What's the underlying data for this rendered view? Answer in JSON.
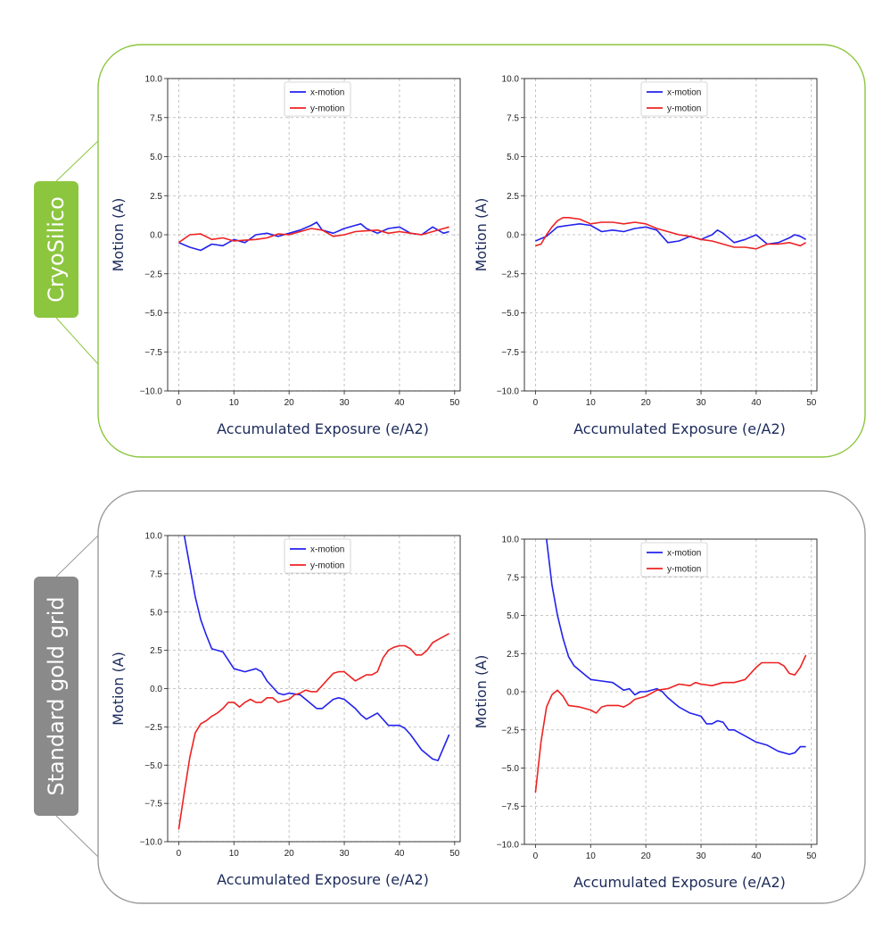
{
  "groups": [
    {
      "label": "CryoSilico",
      "color": "#8cc63f",
      "frame_color": "#8cc63f"
    },
    {
      "label": "Standard gold grid",
      "color": "#8a8a8a",
      "frame_color": "#9a9a9a"
    }
  ],
  "colors": {
    "x_motion": "#2222ee",
    "y_motion": "#ee2222"
  },
  "chart_data": [
    {
      "type": "line",
      "xlabel": "Accumulated Exposure (e/A2)",
      "ylabel": "Motion (A)",
      "xlim": [
        -2,
        51
      ],
      "ylim": [
        -10,
        10
      ],
      "xticks": [
        "0",
        "10",
        "20",
        "30",
        "40",
        "50"
      ],
      "yticks": [
        "10.0",
        "7.5",
        "5.0",
        "2.5",
        "0.0",
        "−2.5",
        "−5.0",
        "−7.5",
        "−10.0"
      ],
      "legend": "top-center",
      "grid": true,
      "series": [
        {
          "name": "x-motion",
          "x": [
            0,
            2,
            4,
            6,
            8,
            10,
            12,
            14,
            16,
            18,
            20,
            22,
            24,
            25,
            26,
            28,
            30,
            32,
            33,
            34,
            36,
            38,
            40,
            42,
            44,
            46,
            48,
            49
          ],
          "y": [
            -0.5,
            -0.8,
            -1.0,
            -0.6,
            -0.7,
            -0.3,
            -0.5,
            0.0,
            0.1,
            -0.1,
            0.1,
            0.3,
            0.6,
            0.8,
            0.3,
            0.1,
            0.4,
            0.6,
            0.7,
            0.4,
            0.1,
            0.4,
            0.5,
            0.1,
            0.0,
            0.5,
            0.1,
            0.2
          ]
        },
        {
          "name": "y-motion",
          "x": [
            0,
            2,
            4,
            6,
            8,
            10,
            12,
            14,
            16,
            18,
            20,
            22,
            24,
            26,
            28,
            30,
            32,
            34,
            36,
            38,
            40,
            42,
            44,
            46,
            48,
            49
          ],
          "y": [
            -0.5,
            0.0,
            0.05,
            -0.3,
            -0.2,
            -0.4,
            -0.35,
            -0.3,
            -0.2,
            0.05,
            0.0,
            0.2,
            0.4,
            0.3,
            -0.1,
            0.0,
            0.2,
            0.25,
            0.3,
            0.1,
            0.2,
            0.1,
            0.0,
            0.2,
            0.4,
            0.5
          ]
        }
      ]
    },
    {
      "type": "line",
      "xlabel": "Accumulated Exposure (e/A2)",
      "ylabel": "Motion (A)",
      "xlim": [
        -2,
        51
      ],
      "ylim": [
        -10,
        10
      ],
      "xticks": [
        "0",
        "10",
        "20",
        "30",
        "40",
        "50"
      ],
      "yticks": [
        "10.0",
        "7.5",
        "5.0",
        "2.5",
        "0.0",
        "−2.5",
        "−5.0",
        "−7.5",
        "−10.0"
      ],
      "legend": "top-center",
      "grid": true,
      "series": [
        {
          "name": "x-motion",
          "x": [
            0,
            2,
            4,
            6,
            8,
            10,
            12,
            14,
            16,
            18,
            20,
            22,
            24,
            26,
            28,
            30,
            32,
            33,
            34,
            36,
            38,
            40,
            42,
            44,
            46,
            47,
            48,
            49
          ],
          "y": [
            -0.4,
            -0.1,
            0.5,
            0.6,
            0.7,
            0.6,
            0.2,
            0.3,
            0.2,
            0.4,
            0.5,
            0.3,
            -0.5,
            -0.4,
            -0.1,
            -0.3,
            0.0,
            0.3,
            0.1,
            -0.5,
            -0.3,
            0.0,
            -0.6,
            -0.5,
            -0.2,
            0.0,
            -0.1,
            -0.3
          ]
        },
        {
          "name": "y-motion",
          "x": [
            0,
            1,
            2,
            3,
            4,
            5,
            6,
            8,
            10,
            12,
            14,
            16,
            18,
            20,
            22,
            24,
            26,
            28,
            30,
            32,
            34,
            36,
            38,
            40,
            42,
            44,
            46,
            48,
            49
          ],
          "y": [
            -0.7,
            -0.6,
            0.0,
            0.5,
            0.9,
            1.1,
            1.1,
            1.0,
            0.7,
            0.8,
            0.8,
            0.7,
            0.8,
            0.7,
            0.4,
            0.2,
            0.0,
            -0.1,
            -0.3,
            -0.4,
            -0.6,
            -0.8,
            -0.8,
            -0.9,
            -0.6,
            -0.6,
            -0.5,
            -0.7,
            -0.5
          ]
        }
      ]
    },
    {
      "type": "line",
      "xlabel": "Accumulated Exposure (e/A2)",
      "ylabel": "Motion (A)",
      "xlim": [
        -2,
        51
      ],
      "ylim": [
        -10,
        10
      ],
      "xticks": [
        "0",
        "10",
        "20",
        "30",
        "40",
        "50"
      ],
      "yticks": [
        "10.0",
        "7.5",
        "5.0",
        "2.5",
        "0.0",
        "−2.5",
        "−5.0",
        "−7.5",
        "−10.0"
      ],
      "legend": "top-center",
      "grid": true,
      "series": [
        {
          "name": "x-motion",
          "x": [
            1,
            2,
            3,
            4,
            5,
            6,
            7,
            8,
            10,
            12,
            14,
            15,
            16,
            18,
            19,
            20,
            22,
            24,
            25,
            26,
            28,
            29,
            30,
            32,
            33,
            34,
            36,
            38,
            40,
            41,
            42,
            44,
            46,
            47,
            49
          ],
          "y": [
            10.0,
            8.0,
            6.0,
            4.5,
            3.5,
            2.6,
            2.5,
            2.4,
            1.3,
            1.1,
            1.3,
            1.1,
            0.5,
            -0.3,
            -0.4,
            -0.3,
            -0.4,
            -1.0,
            -1.3,
            -1.3,
            -0.7,
            -0.6,
            -0.7,
            -1.3,
            -1.7,
            -2.0,
            -1.6,
            -2.4,
            -2.4,
            -2.6,
            -3.0,
            -4.0,
            -4.6,
            -4.7,
            -3.0
          ]
        },
        {
          "name": "y-motion",
          "x": [
            0,
            1,
            2,
            3,
            4,
            5,
            6,
            7,
            8,
            9,
            10,
            11,
            12,
            13,
            14,
            15,
            16,
            17,
            18,
            19,
            20,
            21,
            22,
            23,
            24,
            25,
            26,
            27,
            28,
            29,
            30,
            31,
            32,
            33,
            34,
            35,
            36,
            37,
            38,
            39,
            40,
            41,
            42,
            43,
            44,
            45,
            46,
            47,
            48,
            49
          ],
          "y": [
            -9.2,
            -6.8,
            -4.5,
            -2.9,
            -2.3,
            -2.1,
            -1.8,
            -1.6,
            -1.3,
            -0.9,
            -0.9,
            -1.2,
            -0.9,
            -0.7,
            -0.9,
            -0.9,
            -0.6,
            -0.6,
            -0.9,
            -0.8,
            -0.7,
            -0.4,
            -0.3,
            -0.1,
            -0.2,
            -0.2,
            0.2,
            0.6,
            1.0,
            1.1,
            1.1,
            0.8,
            0.5,
            0.7,
            0.9,
            0.9,
            1.1,
            2.0,
            2.5,
            2.7,
            2.8,
            2.8,
            2.6,
            2.2,
            2.2,
            2.5,
            3.0,
            3.2,
            3.4,
            3.6
          ]
        }
      ]
    },
    {
      "type": "line",
      "xlabel": "Accumulated Exposure (e/A2)",
      "ylabel": "Motion (A)",
      "xlim": [
        -2,
        51
      ],
      "ylim": [
        -10,
        10
      ],
      "xticks": [
        "0",
        "10",
        "20",
        "30",
        "40",
        "50"
      ],
      "yticks": [
        "10.0",
        "7.5",
        "5.0",
        "2.5",
        "0.0",
        "−2.5",
        "−5.0",
        "−7.5",
        "−10.0"
      ],
      "legend": "top-center",
      "grid": true,
      "series": [
        {
          "name": "x-motion",
          "x": [
            2,
            3,
            4,
            5,
            6,
            7,
            8,
            9,
            10,
            12,
            14,
            16,
            17,
            18,
            19,
            20,
            22,
            23,
            24,
            25,
            26,
            28,
            30,
            31,
            32,
            33,
            34,
            35,
            36,
            38,
            40,
            42,
            44,
            46,
            47,
            48,
            49
          ],
          "y": [
            10.0,
            7.0,
            5.0,
            3.5,
            2.3,
            1.7,
            1.4,
            1.1,
            0.8,
            0.7,
            0.6,
            0.1,
            0.2,
            -0.2,
            0.0,
            0.0,
            0.2,
            0.0,
            -0.4,
            -0.7,
            -1.0,
            -1.4,
            -1.6,
            -2.1,
            -2.1,
            -1.9,
            -2.0,
            -2.5,
            -2.5,
            -2.9,
            -3.3,
            -3.5,
            -3.9,
            -4.1,
            -4.0,
            -3.6,
            -3.6
          ]
        },
        {
          "name": "y-motion",
          "x": [
            0,
            1,
            2,
            3,
            4,
            5,
            6,
            8,
            10,
            11,
            12,
            13,
            14,
            15,
            16,
            17,
            18,
            20,
            22,
            24,
            26,
            28,
            29,
            30,
            32,
            34,
            36,
            38,
            40,
            41,
            42,
            43,
            44,
            45,
            46,
            47,
            48,
            49
          ],
          "y": [
            -6.6,
            -3.3,
            -1.0,
            -0.2,
            0.1,
            -0.3,
            -0.9,
            -1.0,
            -1.2,
            -1.4,
            -1.0,
            -0.9,
            -0.9,
            -0.9,
            -1.0,
            -0.8,
            -0.5,
            -0.3,
            0.1,
            0.2,
            0.5,
            0.4,
            0.6,
            0.5,
            0.4,
            0.6,
            0.6,
            0.8,
            1.6,
            1.9,
            1.9,
            1.9,
            1.9,
            1.7,
            1.2,
            1.1,
            1.6,
            2.4
          ]
        }
      ]
    }
  ]
}
